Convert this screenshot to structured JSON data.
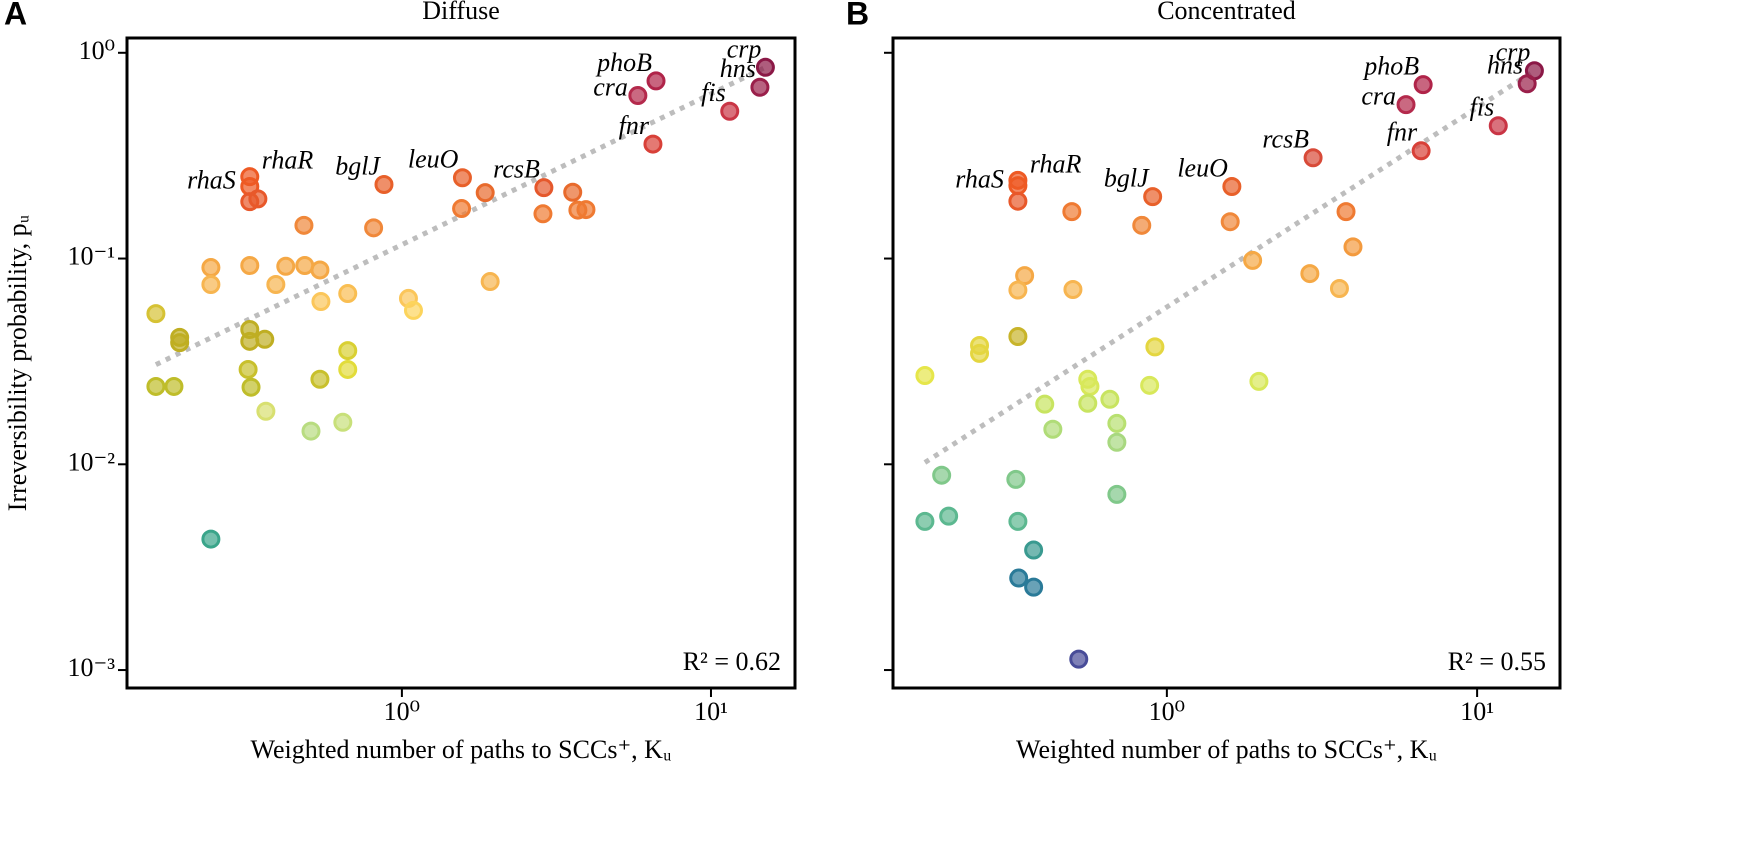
{
  "chart_data": [
    {
      "type": "scatter",
      "panel": "A",
      "title": "Diffuse",
      "xlabel": "Weighted number of paths to SCCs⁺, Kᵤ",
      "ylabel": "Irreversibility probability, pᵤ",
      "annotation": "R² = 0.62",
      "log_x": true,
      "log_y": true,
      "ytick_labels": true,
      "xlim": [
        0.129,
        18.7
      ],
      "ylim": [
        0.000818,
        1.18
      ],
      "xticks": [
        {
          "value": 1,
          "label": "10⁰"
        },
        {
          "value": 10,
          "label": "10¹"
        }
      ],
      "yticks": [
        {
          "value": 0.001,
          "label": "10⁻³"
        },
        {
          "value": 0.01,
          "label": "10⁻²"
        },
        {
          "value": 0.1,
          "label": "10⁻¹"
        },
        {
          "value": 1,
          "label": "10⁰"
        }
      ],
      "x": [
        15,
        14.4,
        11.5,
        6.64,
        5.8,
        6.49,
        2.88,
        1.57,
        0.875,
        0.322,
        0.322,
        0.322,
        0.342,
        0.482,
        0.81,
        2.86,
        3.71,
        3.94,
        3.57,
        1.56,
        1.86,
        0.241,
        0.241,
        0.322,
        0.421,
        0.485,
        0.543,
        0.391,
        0.547,
        0.668,
        1.05,
        1.09,
        1.93,
        0.16,
        0.191,
        0.191,
        0.322,
        0.322,
        0.36,
        0.16,
        0.183,
        0.318,
        0.325,
        0.668,
        0.668,
        0.543,
        0.363,
        0.508,
        0.644,
        0.241
      ],
      "values": [
        0.85,
        0.68,
        0.52,
        0.73,
        0.62,
        0.36,
        0.221,
        0.247,
        0.229,
        0.224,
        0.25,
        0.189,
        0.195,
        0.145,
        0.141,
        0.165,
        0.172,
        0.173,
        0.21,
        0.175,
        0.209,
        0.0904,
        0.0748,
        0.0925,
        0.0917,
        0.0925,
        0.088,
        0.0748,
        0.0618,
        0.0676,
        0.064,
        0.056,
        0.0773,
        0.054,
        0.0414,
        0.039,
        0.0452,
        0.0396,
        0.0405,
        0.0239,
        0.0239,
        0.0289,
        0.0237,
        0.0357,
        0.0289,
        0.0259,
        0.0181,
        0.0145,
        0.016,
        0.00433
      ],
      "colors": [
        "#8b1846",
        "#9a1f4a",
        "#c93545",
        "#b02449",
        "#b42a4c",
        "#d84038",
        "#e5582c",
        "#e8602a",
        "#e8602a",
        "#ee5a24",
        "#ee5a24",
        "#e8582a",
        "#e8582a",
        "#f0883a",
        "#f0883a",
        "#ef7a32",
        "#ef7a32",
        "#ef7a32",
        "#e86a2c",
        "#ef7a32",
        "#e86a2c",
        "#f5a845",
        "#f7b550",
        "#f5a845",
        "#f5a845",
        "#f5a845",
        "#f5a845",
        "#f7b550",
        "#fbc65a",
        "#f9be52",
        "#fbc65a",
        "#fcd45c",
        "#f7b550",
        "#d6c234",
        "#bfae22",
        "#bfae22",
        "#bfae22",
        "#bfae22",
        "#bfae22",
        "#bfbd2a",
        "#bfbd2a",
        "#c8c02c",
        "#bfbd2a",
        "#d9d032",
        "#e2dc3a",
        "#c8c02c",
        "#d8e070",
        "#b8dc80",
        "#c8e07a",
        "#3aa58a"
      ],
      "labels": [
        "crp",
        "hns",
        "fis",
        "phoB",
        "cra",
        "fnr",
        "rcsB",
        "leuO",
        "bglJ",
        "rhaS",
        "rhaR",
        null,
        null,
        null,
        null,
        null,
        null,
        null,
        null,
        null,
        null,
        null,
        null,
        null,
        null,
        null,
        null,
        null,
        null,
        null,
        null,
        null,
        null,
        null,
        null,
        null,
        null,
        null,
        null,
        null,
        null,
        null,
        null,
        null,
        null,
        null,
        null,
        null,
        null,
        null
      ],
      "fit": {
        "x": [
          0.16,
          15
        ],
        "values": [
          0.0305,
          0.85
        ],
        "color": "#bdbdbd"
      }
    },
    {
      "type": "scatter",
      "panel": "B",
      "title": "Concentrated",
      "xlabel": "Weighted number of paths to SCCs⁺, Kᵤ",
      "annotation": "R² = 0.55",
      "log_x": true,
      "log_y": true,
      "ytick_labels": false,
      "xlim": [
        0.131,
        18.5
      ],
      "ylim": [
        0.000818,
        1.18
      ],
      "xticks": [
        {
          "value": 1,
          "label": "10⁰"
        },
        {
          "value": 10,
          "label": "10¹"
        }
      ],
      "yticks": [
        0.001,
        0.01,
        0.1,
        1
      ],
      "x": [
        15.3,
        14.5,
        11.7,
        6.7,
        5.9,
        6.6,
        2.96,
        1.62,
        0.9,
        0.331,
        0.331,
        0.331,
        0.494,
        0.83,
        1.6,
        3.78,
        3.98,
        1.89,
        2.89,
        3.6,
        0.348,
        0.331,
        0.498,
        0.331,
        0.249,
        0.249,
        0.166,
        0.915,
        0.88,
        1.98,
        0.556,
        0.565,
        0.556,
        0.404,
        0.429,
        0.655,
        0.69,
        0.69,
        0.69,
        0.188,
        0.326,
        0.166,
        0.198,
        0.331,
        0.372,
        0.333,
        0.372,
        0.52
      ],
      "values": [
        0.818,
        0.707,
        0.442,
        0.7,
        0.56,
        0.334,
        0.309,
        0.224,
        0.2,
        0.226,
        0.24,
        0.19,
        0.169,
        0.145,
        0.151,
        0.169,
        0.114,
        0.098,
        0.0845,
        0.0715,
        0.0826,
        0.0703,
        0.0707,
        0.0418,
        0.0378,
        0.0346,
        0.027,
        0.0372,
        0.0242,
        0.0253,
        0.0259,
        0.0239,
        0.0198,
        0.0196,
        0.0148,
        0.0207,
        0.0158,
        0.0128,
        0.00714,
        0.00885,
        0.00845,
        0.00528,
        0.0056,
        0.00528,
        0.00383,
        0.0028,
        0.00253,
        0.00113
      ],
      "colors": [
        "#8b1846",
        "#9a1f4a",
        "#c93545",
        "#b02449",
        "#b42a4c",
        "#d84038",
        "#d84a38",
        "#e8602a",
        "#e8602a",
        "#ee5a24",
        "#ee5a24",
        "#e8582a",
        "#ef7a32",
        "#f0883a",
        "#f0883a",
        "#ef7a32",
        "#f39a3e",
        "#f5a845",
        "#f5a845",
        "#f7b550",
        "#f5a845",
        "#f7b550",
        "#f7b550",
        "#c8b42a",
        "#e4d640",
        "#e4d640",
        "#e6e64a",
        "#e4d640",
        "#d8e85a",
        "#d8e85a",
        "#d8e85a",
        "#d8e85a",
        "#c8e460",
        "#c8e460",
        "#b0dc78",
        "#c8e460",
        "#b8e070",
        "#a8d880",
        "#80c88a",
        "#80c88a",
        "#80c88a",
        "#5cb890",
        "#5cb890",
        "#5cb890",
        "#3a9a90",
        "#2a7a98",
        "#2a7a98",
        "#484c98"
      ],
      "labels": [
        "crp",
        "hns",
        "fis",
        "phoB",
        "cra",
        "fnr",
        "rcsB",
        "leuO",
        "bglJ",
        "rhaS",
        "rhaR",
        null,
        null,
        null,
        null,
        null,
        null,
        null,
        null,
        null,
        null,
        null,
        null,
        null,
        null,
        null,
        null,
        null,
        null,
        null,
        null,
        null,
        null,
        null,
        null,
        null,
        null,
        null,
        null,
        null,
        null,
        null,
        null,
        null,
        null,
        null,
        null,
        null
      ],
      "fit": {
        "x": [
          0.166,
          15.3
        ],
        "values": [
          0.0102,
          0.818
        ],
        "color": "#bdbdbd"
      }
    }
  ]
}
